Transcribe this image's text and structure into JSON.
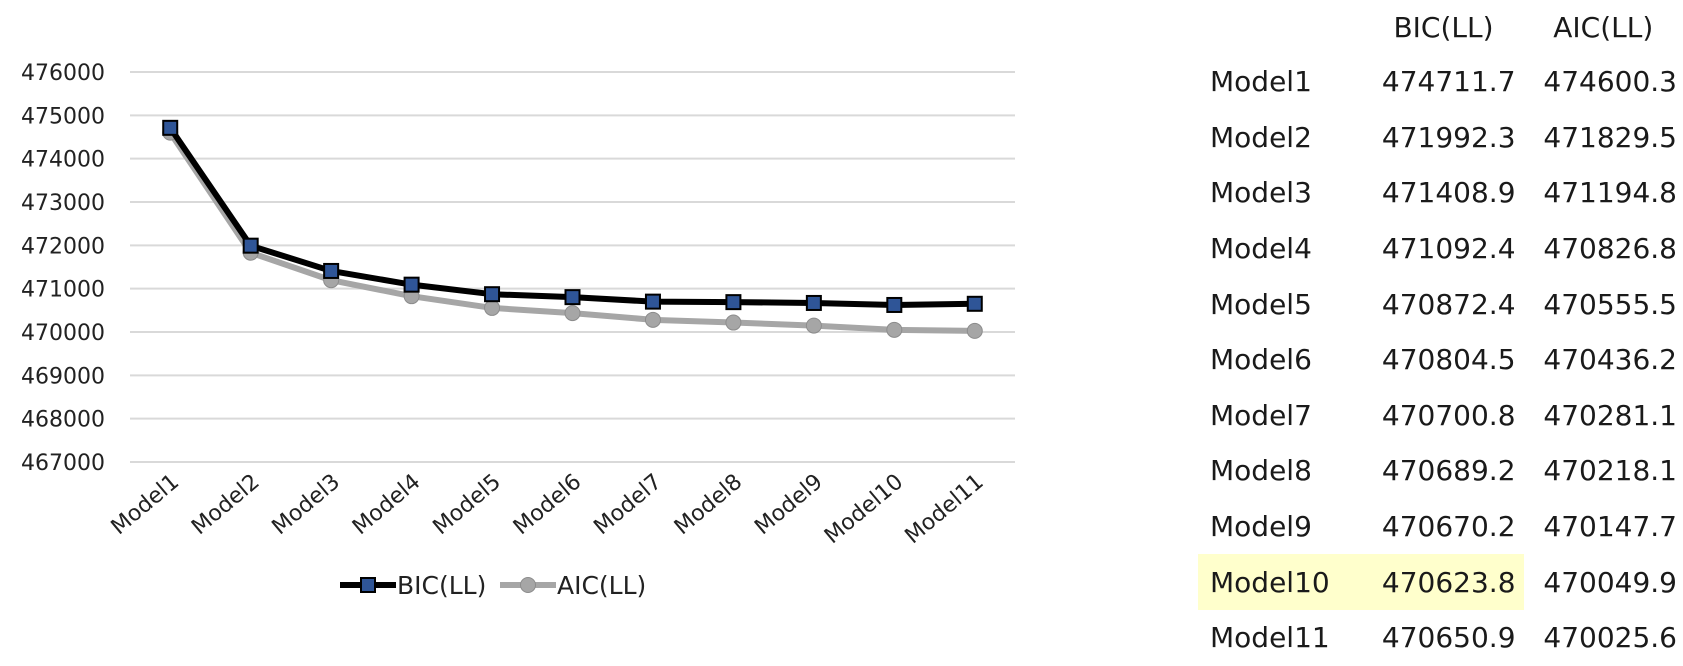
{
  "chart_data": {
    "type": "line",
    "categories": [
      "Model1",
      "Model2",
      "Model3",
      "Model4",
      "Model5",
      "Model6",
      "Model7",
      "Model8",
      "Model9",
      "Model10",
      "Model11"
    ],
    "series": [
      {
        "name": "BIC(LL)",
        "color": "#000000",
        "marker": "square",
        "marker_color": "#2f5597",
        "values": [
          474711.7,
          471992.3,
          471408.9,
          471092.4,
          470872.4,
          470804.5,
          470700.8,
          470689.2,
          470670.2,
          470623.8,
          470650.9
        ]
      },
      {
        "name": "AIC(LL)",
        "color": "#a6a6a6",
        "marker": "circle",
        "marker_color": "#a6a6a6",
        "values": [
          474600.3,
          471829.5,
          471194.8,
          470826.8,
          470555.5,
          470436.2,
          470281.1,
          470218.1,
          470147.7,
          470049.9,
          470025.6
        ]
      }
    ],
    "yticks": [
      476000,
      475000,
      474000,
      473000,
      472000,
      471000,
      470000,
      469000,
      468000,
      467000
    ],
    "ylim": [
      467000,
      476000
    ],
    "grid": true,
    "legend": "bottom"
  },
  "table": {
    "headers": [
      "",
      "BIC(LL)",
      "AIC(LL)"
    ],
    "rows": [
      [
        "Model1",
        "474711.7",
        "474600.3"
      ],
      [
        "Model2",
        "471992.3",
        "471829.5"
      ],
      [
        "Model3",
        "471408.9",
        "471194.8"
      ],
      [
        "Model4",
        "471092.4",
        "470826.8"
      ],
      [
        "Model5",
        "470872.4",
        "470555.5"
      ],
      [
        "Model6",
        "470804.5",
        "470436.2"
      ],
      [
        "Model7",
        "470700.8",
        "470281.1"
      ],
      [
        "Model8",
        "470689.2",
        "470218.1"
      ],
      [
        "Model9",
        "470670.2",
        "470147.7"
      ],
      [
        "Model10",
        "470623.8",
        "470049.9"
      ],
      [
        "Model11",
        "470650.9",
        "470025.6"
      ]
    ],
    "highlight_row": 9,
    "highlight_color": "#ffffcc"
  }
}
